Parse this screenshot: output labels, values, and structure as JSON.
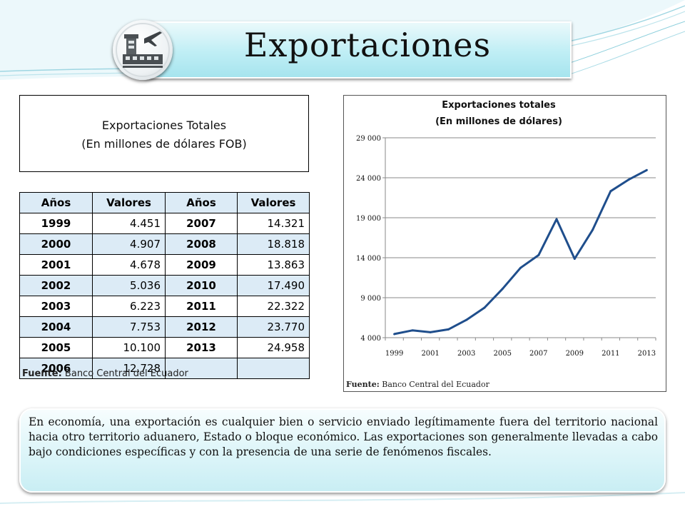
{
  "header": {
    "title": "Exportaciones",
    "logo_icon": "airport-tower-plane-icon"
  },
  "table_title": {
    "line1": "Exportaciones Totales",
    "line2": "(En millones de dólares FOB)"
  },
  "table": {
    "headers": [
      "Años",
      "Valores",
      "Años",
      "Valores"
    ],
    "rows": [
      [
        "1999",
        "4.451",
        "2007",
        "14.321"
      ],
      [
        "2000",
        "4.907",
        "2008",
        "18.818"
      ],
      [
        "2001",
        "4.678",
        "2009",
        "13.863"
      ],
      [
        "2002",
        "5.036",
        "2010",
        "17.490"
      ],
      [
        "2003",
        "6.223",
        "2011",
        "22.322"
      ],
      [
        "2004",
        "7.753",
        "2012",
        "23.770"
      ],
      [
        "2005",
        "10.100",
        "2013",
        "24.958"
      ],
      [
        "2006",
        "12.728",
        "",
        ""
      ]
    ]
  },
  "fuente_left": {
    "label": "Fuente:",
    "text": " Banco Central del Ecuador"
  },
  "chart_data": {
    "type": "line",
    "title": "Exportaciones totales",
    "subtitle": "(En millones de dólares)",
    "xlabel": "",
    "ylabel": "",
    "x": [
      1999,
      2000,
      2001,
      2002,
      2003,
      2004,
      2005,
      2006,
      2007,
      2008,
      2009,
      2010,
      2011,
      2012,
      2013
    ],
    "values": [
      4451,
      4907,
      4678,
      5036,
      6223,
      7753,
      10100,
      12728,
      14321,
      18818,
      13863,
      17490,
      22322,
      23770,
      24958
    ],
    "ylim": [
      4000,
      29000
    ],
    "yticks": [
      4000,
      9000,
      14000,
      19000,
      24000,
      29000
    ],
    "ytick_labels": [
      "4 000",
      "9 000",
      "14 000",
      "19 000",
      "24 000",
      "29 000"
    ],
    "xticks": [
      1999,
      2001,
      2003,
      2005,
      2007,
      2009,
      2011,
      2013
    ],
    "xtick_labels": [
      "1999",
      "2001",
      "2003",
      "2005",
      "2007",
      "2009",
      "2011",
      "2013"
    ],
    "grid": true,
    "legend": "none",
    "line_color": "#1f4e8c"
  },
  "fuente_right": {
    "label": "Fuente:",
    "text": " Banco Central del Ecuador"
  },
  "description": "En economía, una exportación es cualquier bien o servicio enviado legítimamente fuera del territorio nacional hacia otro territorio aduanero, Estado o bloque económico. Las exportaciones son generalmente llevadas a cabo bajo condiciones específicas y con la presencia de una serie de fenómenos fiscales."
}
